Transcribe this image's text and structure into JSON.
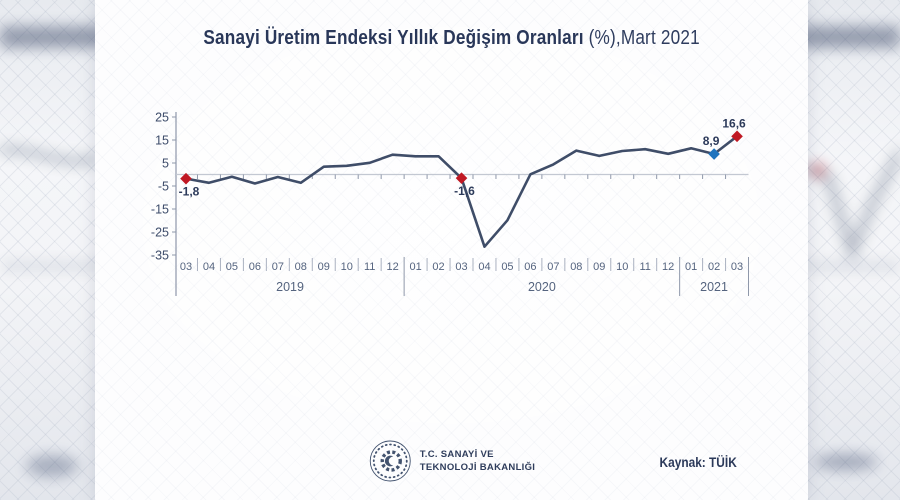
{
  "title": {
    "main": "Sanayi Üretim Endeksi Yıllık Değişim Oranları ",
    "suffix": "(%),Mart 2021"
  },
  "footer": {
    "ministry_line1": "T.C. SANAYİ VE",
    "ministry_line2": "TEKNOLOJİ BAKANLIĞI",
    "source": "Kaynak: TÜİK"
  },
  "chart_data": {
    "type": "line",
    "title": "Sanayi Üretim Endeksi Yıllık Değişim Oranları (%), Mart 2021",
    "x_months": [
      "03",
      "04",
      "05",
      "06",
      "07",
      "08",
      "09",
      "10",
      "11",
      "12",
      "01",
      "02",
      "03",
      "04",
      "05",
      "06",
      "07",
      "08",
      "09",
      "10",
      "11",
      "12",
      "01",
      "02",
      "03"
    ],
    "year_groups": [
      {
        "label": "2019",
        "count": 10
      },
      {
        "label": "2020",
        "count": 12
      },
      {
        "label": "2021",
        "count": 3
      }
    ],
    "values": [
      -1.8,
      -3.6,
      -1.0,
      -3.9,
      -1.1,
      -3.6,
      3.4,
      3.8,
      5.1,
      8.6,
      7.9,
      7.9,
      -1.6,
      -31.4,
      -19.9,
      0.1,
      4.4,
      10.4,
      8.1,
      10.2,
      11.0,
      9.0,
      11.4,
      8.9,
      16.6
    ],
    "y_ticks": [
      "25",
      "15",
      "5",
      "-5",
      "-15",
      "-25",
      "-35"
    ],
    "ylim": [
      -35,
      25
    ],
    "grid": "zero-line-only",
    "legend": "none",
    "annotations": [
      {
        "index": 0,
        "label": "-1,8",
        "marker": "diamond",
        "color": "#c01823",
        "label_pos": "below"
      },
      {
        "index": 12,
        "label": "-1,6",
        "marker": "diamond",
        "color": "#c01823",
        "label_pos": "below"
      },
      {
        "index": 23,
        "label": "8,9",
        "marker": "diamond",
        "color": "#1e73be",
        "label_pos": "above"
      },
      {
        "index": 24,
        "label": "16,6",
        "marker": "diamond",
        "color": "#c01823",
        "label_pos": "above"
      }
    ],
    "colors": {
      "line": "#3f4d68",
      "zero_line": "#c3c8d2",
      "axis": "#8f98aa",
      "marker_red": "#c01823",
      "marker_blue": "#1e73be",
      "title_navy": "#293759"
    }
  }
}
